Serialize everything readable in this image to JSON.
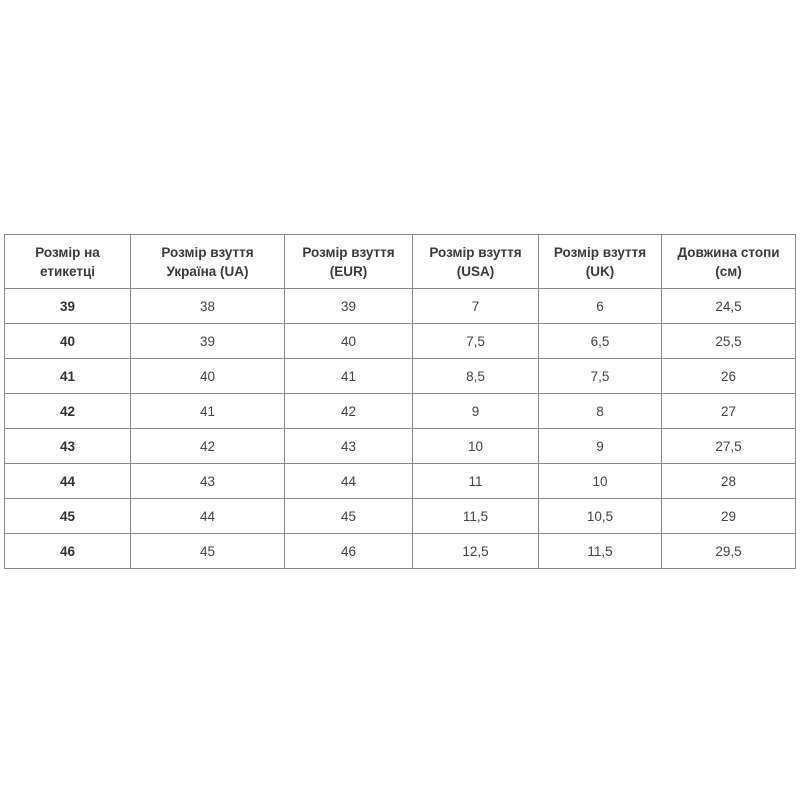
{
  "table": {
    "headers": [
      "Розмір на етикетці",
      "Розмір взуття Україна (UA)",
      "Розмір взуття (EUR)",
      "Розмір взуття (USA)",
      "Розмір взуття (UK)",
      "Довжина стопи (см)"
    ],
    "rows": [
      [
        "39",
        "38",
        "39",
        "7",
        "6",
        "24,5"
      ],
      [
        "40",
        "39",
        "40",
        "7,5",
        "6,5",
        "25,5"
      ],
      [
        "41",
        "40",
        "41",
        "8,5",
        "7,5",
        "26"
      ],
      [
        "42",
        "41",
        "42",
        "9",
        "8",
        "27"
      ],
      [
        "43",
        "42",
        "43",
        "10",
        "9",
        "27,5"
      ],
      [
        "44",
        "43",
        "44",
        "11",
        "10",
        "28"
      ],
      [
        "45",
        "44",
        "45",
        "11,5",
        "10,5",
        "29"
      ],
      [
        "46",
        "45",
        "46",
        "12,5",
        "11,5",
        "29,5"
      ]
    ]
  }
}
